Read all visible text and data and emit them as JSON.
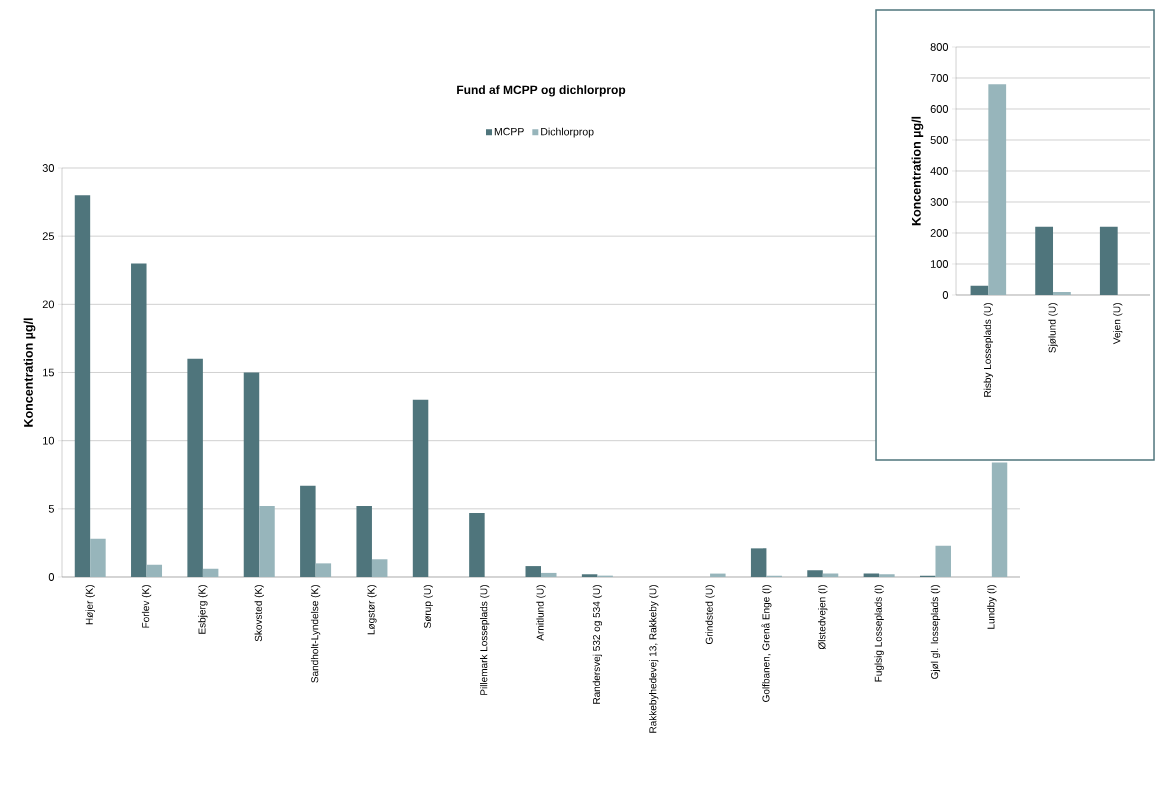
{
  "chart_data": [
    {
      "type": "bar",
      "title": "Fund af MCPP og dichlorprop",
      "ylabel": "Koncentration µg/l",
      "categories": [
        "Højer (K)",
        "Forlev (K)",
        "Esbjerg (K)",
        "Skovsted  (K)",
        "Sandholt-Lyndelse  (K)",
        "Løgstør (K)",
        "Sørup (U)",
        "Pillemark Losseplads (U)",
        "Arnitlund (U)",
        "Randersvej 532 og 534  (U)",
        "Rakkebyhedevej 13, Rakkeby (U)",
        "Grindsted (U)",
        "Golfbanen, Grenå Enge (I)",
        "Ølstedvejen (I)",
        "Fuglsig Losseplads (I)",
        "Gjøl gl. losseplads (I)",
        "Lundby (I)"
      ],
      "series": [
        {
          "name": "MCPP",
          "color": "#4f757c",
          "values": [
            28,
            23,
            16,
            15,
            6.7,
            5.2,
            13,
            4.7,
            0.8,
            0.2,
            0,
            0,
            2.1,
            0.5,
            0.25,
            0.1,
            0
          ]
        },
        {
          "name": "Dichlorprop",
          "color": "#97b5bb",
          "values": [
            2.8,
            0.9,
            0.6,
            5.2,
            1.0,
            1.3,
            0,
            0,
            0.3,
            0.1,
            0,
            0.25,
            0.1,
            0.25,
            0.2,
            2.3,
            8.4
          ]
        }
      ],
      "ylim": [
        0,
        30
      ],
      "yticks": [
        0,
        5,
        10,
        15,
        20,
        25,
        30
      ],
      "grid": "y",
      "legend": "top"
    },
    {
      "type": "bar",
      "ylabel": "Koncentration µg/l",
      "categories": [
        "Risby Losseplads (U)",
        "Sjølund  (U)",
        "Vejen (U)"
      ],
      "series": [
        {
          "color": "#4f757c",
          "values": [
            30,
            220,
            220
          ]
        },
        {
          "color": "#97b5bb",
          "values": [
            680,
            10,
            0
          ]
        }
      ],
      "ylim": [
        0,
        800
      ],
      "yticks": [
        0,
        100,
        200,
        300,
        400,
        500,
        600,
        700,
        800
      ],
      "grid": "y",
      "legend": false
    }
  ]
}
